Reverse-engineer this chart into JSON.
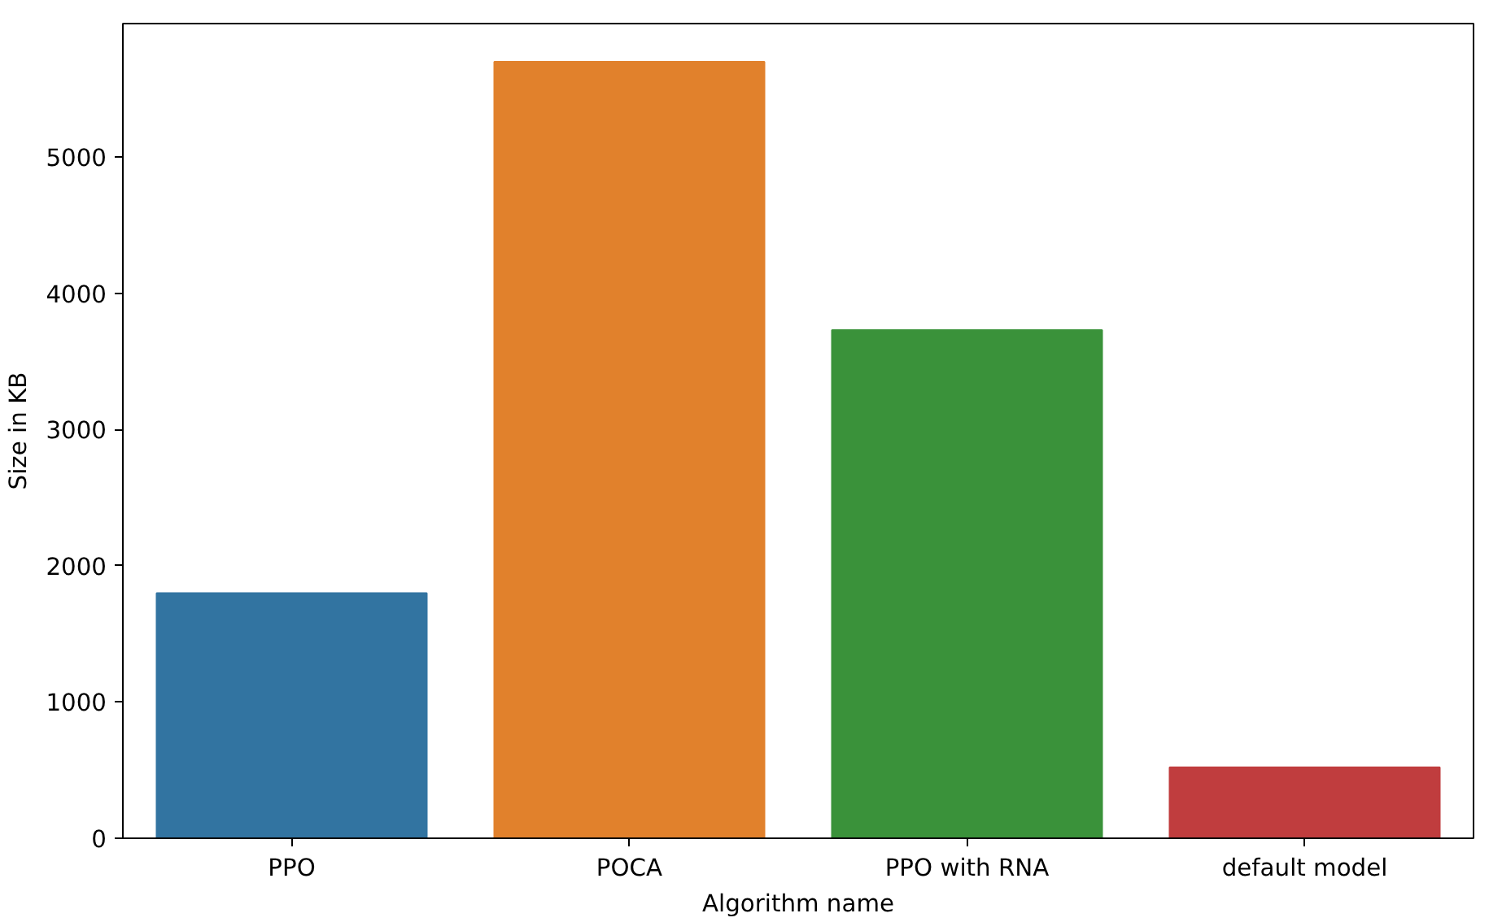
{
  "chart_data": {
    "type": "bar",
    "xlabel": "Algorithm name",
    "ylabel": "Size in KB",
    "categories": [
      "PPO",
      "POCA",
      "PPO with RNA",
      "default model"
    ],
    "values": [
      1800,
      5700,
      3730,
      520
    ],
    "colors": [
      "#3274a1",
      "#e1812c",
      "#3a923a",
      "#c03d3e"
    ],
    "ylim": [
      0,
      5980
    ],
    "yticks": [
      0,
      1000,
      2000,
      3000,
      4000,
      5000
    ],
    "grid": false
  }
}
